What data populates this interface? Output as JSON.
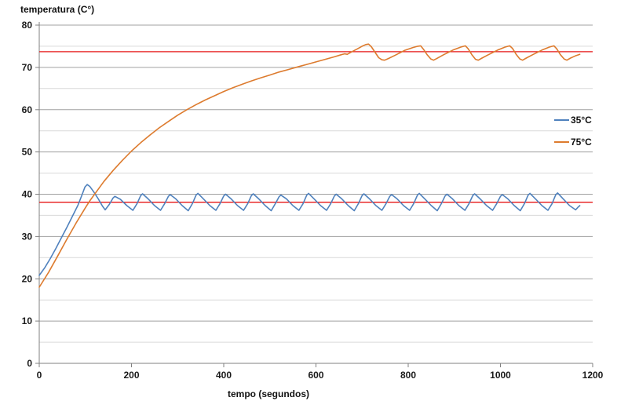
{
  "page": {
    "background": "#ffffff"
  },
  "chart_data": {
    "type": "line",
    "title": "",
    "y_axis": {
      "label": "temperatura (C°)",
      "min": 0,
      "max": 80,
      "major_step": 10,
      "minor_step": 5,
      "major_ticks": [
        0,
        10,
        20,
        30,
        40,
        50,
        60,
        70,
        80
      ]
    },
    "x_axis": {
      "label": "tempo (segundos)",
      "min": 0,
      "max": 1200,
      "major_step": 200,
      "major_ticks": [
        0,
        200,
        400,
        600,
        800,
        1000,
        1200
      ]
    },
    "grid": {
      "major_color": "#a0a0a0",
      "minor_color": "#d9d9d9",
      "axis_color": "#808080",
      "minor_gridlines": true,
      "vertical_gridlines": false
    },
    "reference_lines": [
      {
        "value": 38.1,
        "color": "#e61616"
      },
      {
        "value": 73.7,
        "color": "#e61616"
      }
    ],
    "legend": {
      "position": "right-middle"
    },
    "series": [
      {
        "name": "35°C",
        "color": "#4f81bd",
        "points": [
          [
            0,
            20.8
          ],
          [
            12,
            22.6
          ],
          [
            24,
            24.8
          ],
          [
            36,
            27.2
          ],
          [
            48,
            29.7
          ],
          [
            60,
            32.2
          ],
          [
            72,
            34.8
          ],
          [
            84,
            37.4
          ],
          [
            93,
            39.9
          ],
          [
            99,
            41.7
          ],
          [
            104,
            42.3
          ],
          [
            110,
            41.8
          ],
          [
            118,
            40.6
          ],
          [
            128,
            38.9
          ],
          [
            137,
            37.2
          ],
          [
            143,
            36.3
          ],
          [
            152,
            37.6
          ],
          [
            160,
            39.1
          ],
          [
            164,
            39.5
          ],
          [
            176,
            38.8
          ],
          [
            190,
            37.3
          ],
          [
            203,
            36.2
          ],
          [
            212,
            37.8
          ],
          [
            220,
            39.7
          ],
          [
            224,
            40.1
          ],
          [
            236,
            38.9
          ],
          [
            250,
            37.3
          ],
          [
            263,
            36.2
          ],
          [
            272,
            37.8
          ],
          [
            280,
            39.5
          ],
          [
            284,
            39.9
          ],
          [
            296,
            38.9
          ],
          [
            310,
            37.3
          ],
          [
            323,
            36.1
          ],
          [
            332,
            37.8
          ],
          [
            340,
            39.8
          ],
          [
            344,
            40.2
          ],
          [
            356,
            38.9
          ],
          [
            370,
            37.3
          ],
          [
            383,
            36.2
          ],
          [
            392,
            37.8
          ],
          [
            400,
            39.6
          ],
          [
            404,
            40.0
          ],
          [
            416,
            38.9
          ],
          [
            430,
            37.3
          ],
          [
            443,
            36.2
          ],
          [
            452,
            37.8
          ],
          [
            460,
            39.7
          ],
          [
            464,
            40.1
          ],
          [
            476,
            38.9
          ],
          [
            490,
            37.3
          ],
          [
            503,
            36.1
          ],
          [
            512,
            37.8
          ],
          [
            520,
            39.4
          ],
          [
            524,
            39.8
          ],
          [
            536,
            38.9
          ],
          [
            550,
            37.3
          ],
          [
            563,
            36.2
          ],
          [
            572,
            37.8
          ],
          [
            580,
            39.8
          ],
          [
            584,
            40.2
          ],
          [
            596,
            38.9
          ],
          [
            610,
            37.3
          ],
          [
            623,
            36.2
          ],
          [
            632,
            37.8
          ],
          [
            640,
            39.6
          ],
          [
            644,
            40.0
          ],
          [
            656,
            38.9
          ],
          [
            670,
            37.3
          ],
          [
            683,
            36.1
          ],
          [
            692,
            37.8
          ],
          [
            700,
            39.7
          ],
          [
            704,
            40.1
          ],
          [
            716,
            38.9
          ],
          [
            730,
            37.3
          ],
          [
            743,
            36.2
          ],
          [
            752,
            37.8
          ],
          [
            760,
            39.5
          ],
          [
            764,
            39.9
          ],
          [
            776,
            38.9
          ],
          [
            790,
            37.3
          ],
          [
            803,
            36.2
          ],
          [
            812,
            37.8
          ],
          [
            820,
            39.8
          ],
          [
            824,
            40.2
          ],
          [
            836,
            38.9
          ],
          [
            850,
            37.3
          ],
          [
            863,
            36.1
          ],
          [
            872,
            37.8
          ],
          [
            880,
            39.6
          ],
          [
            884,
            40.0
          ],
          [
            896,
            38.9
          ],
          [
            910,
            37.3
          ],
          [
            923,
            36.2
          ],
          [
            932,
            37.8
          ],
          [
            940,
            39.7
          ],
          [
            944,
            40.1
          ],
          [
            956,
            38.9
          ],
          [
            970,
            37.3
          ],
          [
            983,
            36.2
          ],
          [
            992,
            37.8
          ],
          [
            1000,
            39.5
          ],
          [
            1004,
            39.9
          ],
          [
            1016,
            38.9
          ],
          [
            1030,
            37.3
          ],
          [
            1043,
            36.1
          ],
          [
            1052,
            37.8
          ],
          [
            1060,
            39.8
          ],
          [
            1064,
            40.2
          ],
          [
            1076,
            38.9
          ],
          [
            1090,
            37.3
          ],
          [
            1103,
            36.2
          ],
          [
            1112,
            37.8
          ],
          [
            1120,
            39.9
          ],
          [
            1124,
            40.3
          ],
          [
            1136,
            38.9
          ],
          [
            1150,
            37.3
          ],
          [
            1163,
            36.3
          ],
          [
            1168,
            36.9
          ],
          [
            1172,
            37.3
          ]
        ]
      },
      {
        "name": "75°C",
        "color": "#dd7b2e",
        "points": [
          [
            0,
            18.0
          ],
          [
            20,
            21.5
          ],
          [
            40,
            25.4
          ],
          [
            60,
            29.4
          ],
          [
            80,
            33.2
          ],
          [
            100,
            36.8
          ],
          [
            110,
            38.5
          ],
          [
            120,
            40.0
          ],
          [
            140,
            43.0
          ],
          [
            160,
            45.6
          ],
          [
            180,
            48.0
          ],
          [
            200,
            50.2
          ],
          [
            220,
            52.2
          ],
          [
            240,
            54.0
          ],
          [
            260,
            55.7
          ],
          [
            280,
            57.2
          ],
          [
            300,
            58.7
          ],
          [
            320,
            60.0
          ],
          [
            340,
            61.2
          ],
          [
            360,
            62.3
          ],
          [
            380,
            63.3
          ],
          [
            400,
            64.3
          ],
          [
            420,
            65.2
          ],
          [
            440,
            66.0
          ],
          [
            460,
            66.8
          ],
          [
            480,
            67.5
          ],
          [
            500,
            68.2
          ],
          [
            520,
            68.9
          ],
          [
            540,
            69.5
          ],
          [
            560,
            70.1
          ],
          [
            580,
            70.7
          ],
          [
            600,
            71.3
          ],
          [
            620,
            71.9
          ],
          [
            640,
            72.5
          ],
          [
            655,
            73.0
          ],
          [
            662,
            73.2
          ],
          [
            668,
            73.1
          ],
          [
            678,
            73.7
          ],
          [
            690,
            74.4
          ],
          [
            700,
            75.0
          ],
          [
            708,
            75.4
          ],
          [
            714,
            75.5
          ],
          [
            720,
            74.9
          ],
          [
            728,
            73.6
          ],
          [
            736,
            72.3
          ],
          [
            743,
            71.8
          ],
          [
            749,
            71.7
          ],
          [
            757,
            72.1
          ],
          [
            772,
            72.9
          ],
          [
            792,
            74.0
          ],
          [
            810,
            74.7
          ],
          [
            821,
            75.0
          ],
          [
            827,
            75.1
          ],
          [
            833,
            74.3
          ],
          [
            841,
            73.0
          ],
          [
            849,
            72.0
          ],
          [
            855,
            71.7
          ],
          [
            862,
            72.1
          ],
          [
            877,
            73.0
          ],
          [
            897,
            74.1
          ],
          [
            914,
            74.8
          ],
          [
            924,
            75.1
          ],
          [
            930,
            74.4
          ],
          [
            938,
            73.0
          ],
          [
            946,
            71.9
          ],
          [
            952,
            71.7
          ],
          [
            960,
            72.2
          ],
          [
            974,
            73.0
          ],
          [
            994,
            74.1
          ],
          [
            1010,
            74.8
          ],
          [
            1020,
            75.1
          ],
          [
            1026,
            74.5
          ],
          [
            1034,
            73.1
          ],
          [
            1042,
            72.0
          ],
          [
            1048,
            71.7
          ],
          [
            1056,
            72.2
          ],
          [
            1070,
            73.0
          ],
          [
            1090,
            74.1
          ],
          [
            1106,
            74.8
          ],
          [
            1116,
            75.1
          ],
          [
            1122,
            74.4
          ],
          [
            1130,
            73.0
          ],
          [
            1138,
            72.0
          ],
          [
            1144,
            71.7
          ],
          [
            1152,
            72.2
          ],
          [
            1162,
            72.7
          ],
          [
            1172,
            73.1
          ]
        ]
      }
    ]
  }
}
